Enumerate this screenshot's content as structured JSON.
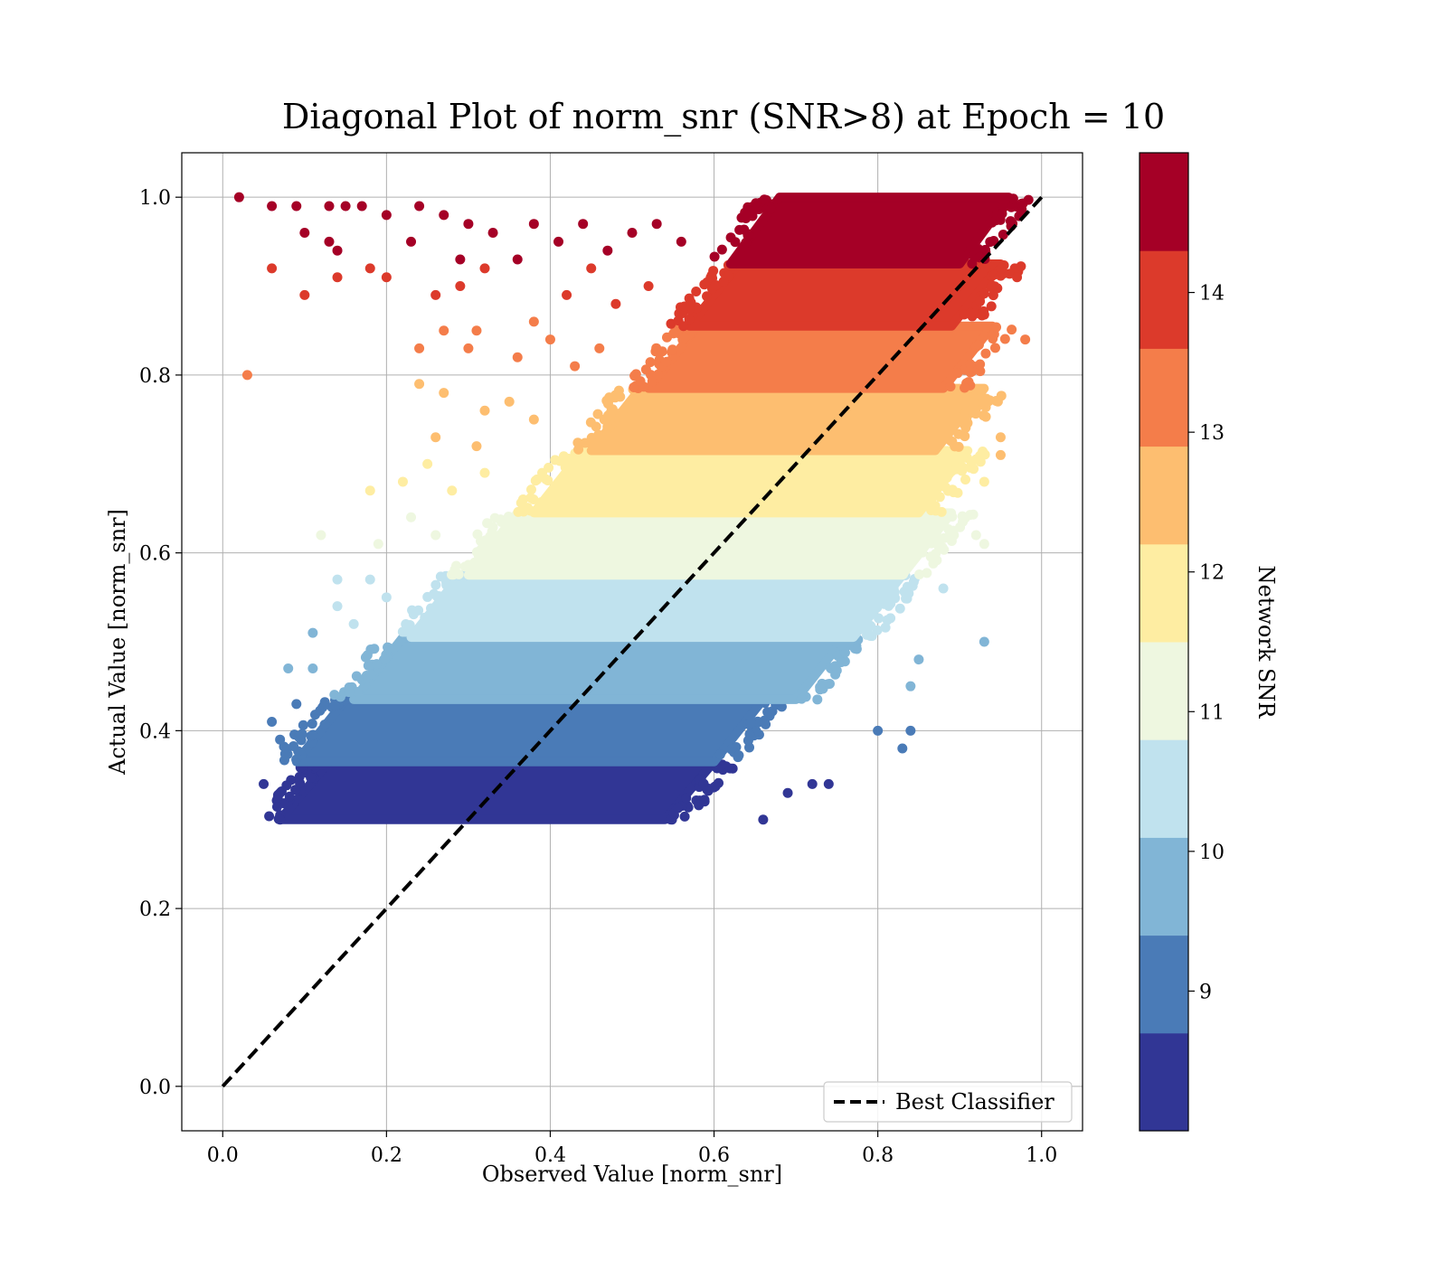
{
  "chart_data": {
    "type": "scatter",
    "title": "Diagonal Plot of norm_snr (SNR>8) at Epoch = 10",
    "xlabel": "Observed Value [norm_snr]",
    "ylabel": "Actual Value [norm_snr]",
    "xlim": [
      -0.05,
      1.05
    ],
    "ylim": [
      -0.05,
      1.05
    ],
    "x_ticks": [
      "0.0",
      "0.2",
      "0.4",
      "0.6",
      "0.8",
      "1.0"
    ],
    "y_ticks": [
      "0.0",
      "0.2",
      "0.4",
      "0.6",
      "0.8",
      "1.0"
    ],
    "grid": true,
    "legend": {
      "position": "lower-right",
      "entries": [
        "Best Classifier"
      ]
    },
    "reference_line": {
      "name": "Best Classifier",
      "style": "dashed",
      "color": "#000000",
      "x": [
        0,
        1
      ],
      "y": [
        0,
        1
      ]
    },
    "colorbar": {
      "label": "Network SNR",
      "range": [
        8,
        15
      ],
      "ticks": [
        "9",
        "10",
        "11",
        "12",
        "13",
        "14"
      ],
      "bins": [
        {
          "from": 8.0,
          "to": 8.7,
          "color": "#313695"
        },
        {
          "from": 8.7,
          "to": 9.4,
          "color": "#4a7bb7"
        },
        {
          "from": 9.4,
          "to": 10.1,
          "color": "#81b5d6"
        },
        {
          "from": 10.1,
          "to": 10.8,
          "color": "#c0e2ee"
        },
        {
          "from": 10.8,
          "to": 11.5,
          "color": "#eef7e0"
        },
        {
          "from": 11.5,
          "to": 12.2,
          "color": "#feeda2"
        },
        {
          "from": 12.2,
          "to": 12.9,
          "color": "#fdbe70"
        },
        {
          "from": 12.9,
          "to": 13.6,
          "color": "#f47d4a"
        },
        {
          "from": 13.6,
          "to": 14.3,
          "color": "#dc3a2b"
        },
        {
          "from": 14.3,
          "to": 15.0,
          "color": "#a50026"
        }
      ]
    },
    "bands": [
      {
        "y": [
          0.3,
          0.365
        ],
        "x": [
          0.07,
          0.6
        ],
        "color": "#313695"
      },
      {
        "y": [
          0.365,
          0.435
        ],
        "x": [
          0.09,
          0.66
        ],
        "color": "#4a7bb7"
      },
      {
        "y": [
          0.435,
          0.505
        ],
        "x": [
          0.16,
          0.76
        ],
        "color": "#81b5d6"
      },
      {
        "y": [
          0.505,
          0.575
        ],
        "x": [
          0.23,
          0.83
        ],
        "color": "#c0e2ee"
      },
      {
        "y": [
          0.575,
          0.645
        ],
        "x": [
          0.3,
          0.89
        ],
        "color": "#eef7e0"
      },
      {
        "y": [
          0.645,
          0.715
        ],
        "x": [
          0.38,
          0.91
        ],
        "color": "#feeda2"
      },
      {
        "y": [
          0.715,
          0.785
        ],
        "x": [
          0.45,
          0.93
        ],
        "color": "#fdbe70"
      },
      {
        "y": [
          0.785,
          0.855
        ],
        "x": [
          0.52,
          0.94
        ],
        "color": "#f47d4a"
      },
      {
        "y": [
          0.855,
          0.925
        ],
        "x": [
          0.57,
          0.95
        ],
        "color": "#dc3a2b"
      },
      {
        "y": [
          0.925,
          1.0
        ],
        "x": [
          0.62,
          0.96
        ],
        "color": "#a50026"
      }
    ],
    "points": [
      {
        "x": 0.02,
        "y": 1.0,
        "color": "#a50026"
      },
      {
        "x": 0.06,
        "y": 0.99,
        "color": "#a50026"
      },
      {
        "x": 0.09,
        "y": 0.99,
        "color": "#a50026"
      },
      {
        "x": 0.1,
        "y": 0.96,
        "color": "#a50026"
      },
      {
        "x": 0.13,
        "y": 0.99,
        "color": "#a50026"
      },
      {
        "x": 0.13,
        "y": 0.95,
        "color": "#a50026"
      },
      {
        "x": 0.14,
        "y": 0.94,
        "color": "#a50026"
      },
      {
        "x": 0.15,
        "y": 0.99,
        "color": "#a50026"
      },
      {
        "x": 0.17,
        "y": 0.99,
        "color": "#a50026"
      },
      {
        "x": 0.2,
        "y": 0.98,
        "color": "#a50026"
      },
      {
        "x": 0.23,
        "y": 0.95,
        "color": "#a50026"
      },
      {
        "x": 0.24,
        "y": 0.99,
        "color": "#a50026"
      },
      {
        "x": 0.27,
        "y": 0.98,
        "color": "#a50026"
      },
      {
        "x": 0.29,
        "y": 0.93,
        "color": "#a50026"
      },
      {
        "x": 0.3,
        "y": 0.97,
        "color": "#a50026"
      },
      {
        "x": 0.33,
        "y": 0.96,
        "color": "#a50026"
      },
      {
        "x": 0.36,
        "y": 0.93,
        "color": "#a50026"
      },
      {
        "x": 0.38,
        "y": 0.97,
        "color": "#a50026"
      },
      {
        "x": 0.41,
        "y": 0.95,
        "color": "#a50026"
      },
      {
        "x": 0.44,
        "y": 0.97,
        "color": "#a50026"
      },
      {
        "x": 0.47,
        "y": 0.94,
        "color": "#a50026"
      },
      {
        "x": 0.5,
        "y": 0.96,
        "color": "#a50026"
      },
      {
        "x": 0.53,
        "y": 0.97,
        "color": "#a50026"
      },
      {
        "x": 0.56,
        "y": 0.95,
        "color": "#a50026"
      },
      {
        "x": 0.06,
        "y": 0.92,
        "color": "#dc3a2b"
      },
      {
        "x": 0.1,
        "y": 0.89,
        "color": "#dc3a2b"
      },
      {
        "x": 0.14,
        "y": 0.91,
        "color": "#dc3a2b"
      },
      {
        "x": 0.18,
        "y": 0.92,
        "color": "#dc3a2b"
      },
      {
        "x": 0.2,
        "y": 0.91,
        "color": "#dc3a2b"
      },
      {
        "x": 0.26,
        "y": 0.89,
        "color": "#dc3a2b"
      },
      {
        "x": 0.29,
        "y": 0.9,
        "color": "#dc3a2b"
      },
      {
        "x": 0.32,
        "y": 0.92,
        "color": "#dc3a2b"
      },
      {
        "x": 0.42,
        "y": 0.89,
        "color": "#dc3a2b"
      },
      {
        "x": 0.45,
        "y": 0.92,
        "color": "#dc3a2b"
      },
      {
        "x": 0.48,
        "y": 0.88,
        "color": "#dc3a2b"
      },
      {
        "x": 0.52,
        "y": 0.9,
        "color": "#dc3a2b"
      },
      {
        "x": 0.97,
        "y": 0.91,
        "color": "#dc3a2b"
      },
      {
        "x": 0.03,
        "y": 0.8,
        "color": "#f47d4a"
      },
      {
        "x": 0.24,
        "y": 0.83,
        "color": "#f47d4a"
      },
      {
        "x": 0.27,
        "y": 0.85,
        "color": "#f47d4a"
      },
      {
        "x": 0.3,
        "y": 0.83,
        "color": "#f47d4a"
      },
      {
        "x": 0.31,
        "y": 0.85,
        "color": "#f47d4a"
      },
      {
        "x": 0.36,
        "y": 0.82,
        "color": "#f47d4a"
      },
      {
        "x": 0.38,
        "y": 0.86,
        "color": "#f47d4a"
      },
      {
        "x": 0.4,
        "y": 0.84,
        "color": "#f47d4a"
      },
      {
        "x": 0.43,
        "y": 0.81,
        "color": "#f47d4a"
      },
      {
        "x": 0.46,
        "y": 0.83,
        "color": "#f47d4a"
      },
      {
        "x": 0.98,
        "y": 0.84,
        "color": "#f47d4a"
      },
      {
        "x": 0.24,
        "y": 0.79,
        "color": "#fdbe70"
      },
      {
        "x": 0.27,
        "y": 0.78,
        "color": "#fdbe70"
      },
      {
        "x": 0.32,
        "y": 0.76,
        "color": "#fdbe70"
      },
      {
        "x": 0.35,
        "y": 0.77,
        "color": "#fdbe70"
      },
      {
        "x": 0.38,
        "y": 0.75,
        "color": "#fdbe70"
      },
      {
        "x": 0.26,
        "y": 0.73,
        "color": "#fdbe70"
      },
      {
        "x": 0.31,
        "y": 0.72,
        "color": "#fdbe70"
      },
      {
        "x": 0.95,
        "y": 0.73,
        "color": "#fdbe70"
      },
      {
        "x": 0.95,
        "y": 0.71,
        "color": "#fdbe70"
      },
      {
        "x": 0.18,
        "y": 0.67,
        "color": "#feeda2"
      },
      {
        "x": 0.22,
        "y": 0.68,
        "color": "#feeda2"
      },
      {
        "x": 0.25,
        "y": 0.7,
        "color": "#feeda2"
      },
      {
        "x": 0.28,
        "y": 0.67,
        "color": "#feeda2"
      },
      {
        "x": 0.32,
        "y": 0.69,
        "color": "#feeda2"
      },
      {
        "x": 0.93,
        "y": 0.68,
        "color": "#feeda2"
      },
      {
        "x": 0.12,
        "y": 0.62,
        "color": "#eef7e0"
      },
      {
        "x": 0.19,
        "y": 0.61,
        "color": "#eef7e0"
      },
      {
        "x": 0.23,
        "y": 0.64,
        "color": "#eef7e0"
      },
      {
        "x": 0.26,
        "y": 0.62,
        "color": "#eef7e0"
      },
      {
        "x": 0.92,
        "y": 0.62,
        "color": "#eef7e0"
      },
      {
        "x": 0.93,
        "y": 0.61,
        "color": "#eef7e0"
      },
      {
        "x": 0.14,
        "y": 0.57,
        "color": "#c0e2ee"
      },
      {
        "x": 0.14,
        "y": 0.54,
        "color": "#c0e2ee"
      },
      {
        "x": 0.18,
        "y": 0.57,
        "color": "#c0e2ee"
      },
      {
        "x": 0.2,
        "y": 0.55,
        "color": "#c0e2ee"
      },
      {
        "x": 0.16,
        "y": 0.52,
        "color": "#c0e2ee"
      },
      {
        "x": 0.88,
        "y": 0.56,
        "color": "#c0e2ee"
      },
      {
        "x": 0.08,
        "y": 0.47,
        "color": "#81b5d6"
      },
      {
        "x": 0.11,
        "y": 0.51,
        "color": "#81b5d6"
      },
      {
        "x": 0.11,
        "y": 0.47,
        "color": "#81b5d6"
      },
      {
        "x": 0.93,
        "y": 0.5,
        "color": "#81b5d6"
      },
      {
        "x": 0.85,
        "y": 0.48,
        "color": "#81b5d6"
      },
      {
        "x": 0.84,
        "y": 0.45,
        "color": "#81b5d6"
      },
      {
        "x": 0.06,
        "y": 0.41,
        "color": "#4a7bb7"
      },
      {
        "x": 0.07,
        "y": 0.39,
        "color": "#4a7bb7"
      },
      {
        "x": 0.09,
        "y": 0.43,
        "color": "#4a7bb7"
      },
      {
        "x": 0.8,
        "y": 0.4,
        "color": "#4a7bb7"
      },
      {
        "x": 0.84,
        "y": 0.4,
        "color": "#4a7bb7"
      },
      {
        "x": 0.83,
        "y": 0.38,
        "color": "#4a7bb7"
      },
      {
        "x": 0.05,
        "y": 0.34,
        "color": "#313695"
      },
      {
        "x": 0.07,
        "y": 0.3,
        "color": "#313695"
      },
      {
        "x": 0.07,
        "y": 0.33,
        "color": "#313695"
      },
      {
        "x": 0.69,
        "y": 0.33,
        "color": "#313695"
      },
      {
        "x": 0.66,
        "y": 0.3,
        "color": "#313695"
      },
      {
        "x": 0.72,
        "y": 0.34,
        "color": "#313695"
      },
      {
        "x": 0.74,
        "y": 0.34,
        "color": "#313695"
      }
    ]
  }
}
